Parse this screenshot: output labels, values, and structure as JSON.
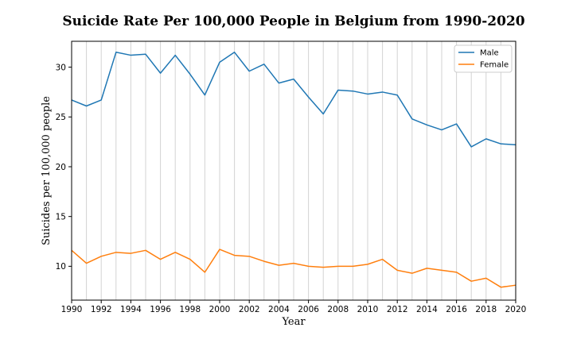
{
  "chart_data": {
    "type": "line",
    "title": "Suicide Rate Per 100,000 People in Belgium from 1990-2020",
    "xlabel": "Year",
    "ylabel": "Suicides per 100,000 people",
    "x": [
      1990,
      1991,
      1992,
      1993,
      1994,
      1995,
      1996,
      1997,
      1998,
      1999,
      2000,
      2001,
      2002,
      2003,
      2004,
      2005,
      2006,
      2007,
      2008,
      2009,
      2010,
      2011,
      2012,
      2013,
      2014,
      2015,
      2016,
      2017,
      2018,
      2019,
      2020
    ],
    "xlim": [
      1990,
      2020
    ],
    "ylim": [
      6.6,
      32.6
    ],
    "x_ticks": [
      1990,
      1992,
      1994,
      1996,
      1998,
      2000,
      2002,
      2004,
      2006,
      2008,
      2010,
      2012,
      2014,
      2016,
      2018,
      2020
    ],
    "y_ticks": [
      10,
      15,
      20,
      25,
      30
    ],
    "grid": "vertical",
    "legend_position": "top-right",
    "series": [
      {
        "name": "Male",
        "color": "#1f77b4",
        "values": [
          26.7,
          26.1,
          26.7,
          31.5,
          31.2,
          31.3,
          29.4,
          31.2,
          29.3,
          27.2,
          30.5,
          31.5,
          29.6,
          30.3,
          28.4,
          28.8,
          27.0,
          25.3,
          27.7,
          27.6,
          27.3,
          27.5,
          27.2,
          24.8,
          24.2,
          23.7,
          24.3,
          22.0,
          22.8,
          22.3,
          22.2
        ]
      },
      {
        "name": "Female",
        "color": "#ff7f0e",
        "values": [
          11.6,
          10.3,
          11.0,
          11.4,
          11.3,
          11.6,
          10.7,
          11.4,
          10.7,
          9.4,
          11.7,
          11.1,
          11.0,
          10.5,
          10.1,
          10.3,
          10.0,
          9.9,
          10.0,
          10.0,
          10.2,
          10.7,
          9.6,
          9.3,
          9.8,
          9.6,
          9.4,
          8.5,
          8.8,
          7.9,
          8.1
        ]
      }
    ]
  }
}
